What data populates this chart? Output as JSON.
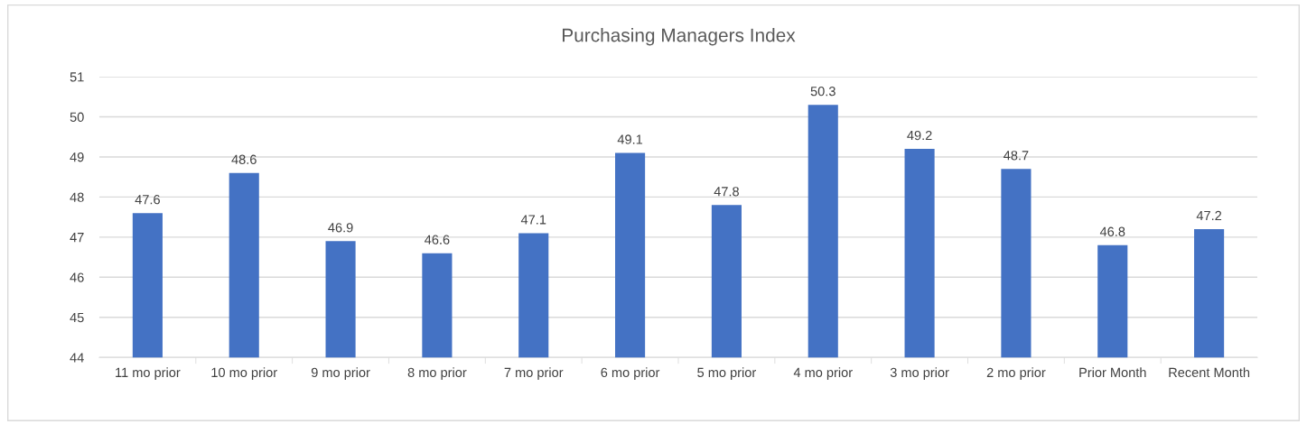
{
  "chart_data": {
    "type": "bar",
    "title": "Purchasing Managers Index",
    "categories": [
      "11 mo prior",
      "10 mo prior",
      "9 mo prior",
      "8 mo prior",
      "7 mo prior",
      "6 mo prior",
      "5 mo prior",
      "4 mo prior",
      "3 mo prior",
      "2 mo prior",
      "Prior Month",
      "Recent Month"
    ],
    "values": [
      47.6,
      48.6,
      46.9,
      46.6,
      47.1,
      49.1,
      47.8,
      50.3,
      49.2,
      48.7,
      46.8,
      47.2
    ],
    "color": "#4472c4",
    "ylim": [
      44,
      51
    ],
    "yticks": [
      44,
      45,
      46,
      47,
      48,
      49,
      50,
      51
    ],
    "grid": "y",
    "data_labels": true
  }
}
